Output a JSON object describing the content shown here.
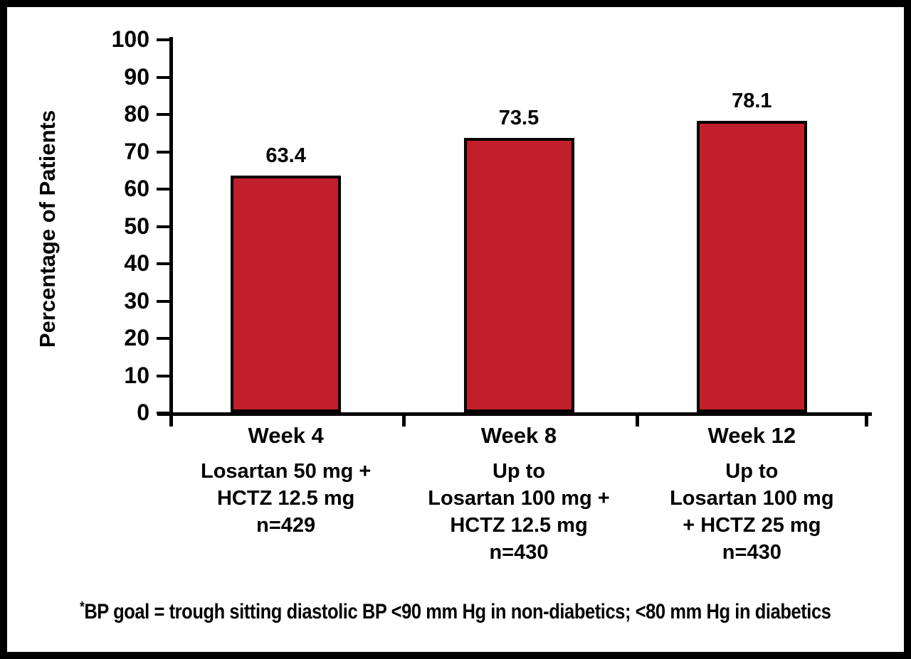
{
  "page": {
    "background_color": "#ffffff",
    "frame_border_color": "#000000"
  },
  "chart_data": {
    "type": "bar",
    "title": "",
    "ylabel": "Percentage of Patients",
    "xlabel": "",
    "ylim": [
      0,
      100
    ],
    "yticks": [
      0,
      10,
      20,
      30,
      40,
      50,
      60,
      70,
      80,
      90,
      100
    ],
    "ytick_labels": [
      "0",
      "10",
      "20",
      "30",
      "40",
      "50",
      "60",
      "70",
      "80",
      "90",
      "100"
    ],
    "grid": false,
    "legend": false,
    "categories": [
      "Week 4",
      "Week 8",
      "Week 12"
    ],
    "category_sublabels": [
      [
        "Losartan 50 mg +",
        "HCTZ 12.5 mg",
        "n=429"
      ],
      [
        "Up to",
        "Losartan 100 mg +",
        "HCTZ 12.5 mg",
        "n=430"
      ],
      [
        "Up to",
        "Losartan 100 mg",
        "+ HCTZ 25 mg",
        "n=430"
      ]
    ],
    "values": [
      63.4,
      73.5,
      78.1
    ],
    "value_labels": [
      "63.4",
      "73.5",
      "78.1"
    ],
    "bar_color": "#C21F2D",
    "bar_border_color": "#000000",
    "axis_color": "#000000",
    "text_color": "#000000",
    "footnote_marker": "*",
    "footnote": "BP goal = trough sitting diastolic BP <90 mm Hg in non-diabetics; <80 mm Hg in diabetics"
  }
}
